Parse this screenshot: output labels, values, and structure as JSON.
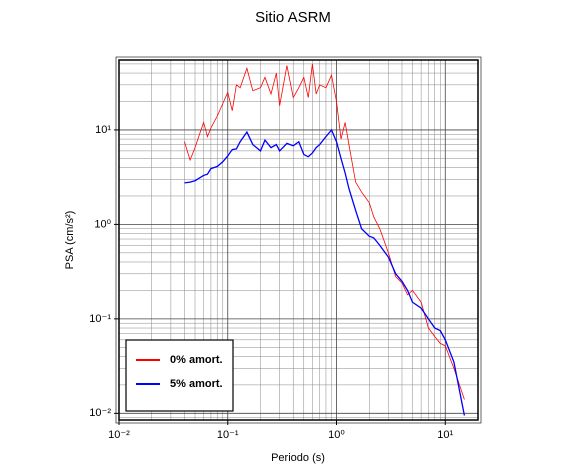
{
  "chart_data": {
    "type": "line",
    "title": "Sitio ASRM",
    "xlabel": "Periodo (s)",
    "ylabel": "PSA (cm/s²)",
    "xscale": "log",
    "yscale": "log",
    "grid": true,
    "legend": "lower left",
    "xlim": [
      0.01,
      20
    ],
    "ylim": [
      0.0085,
      55
    ],
    "xticks": [
      {
        "value": 0.01,
        "label": "10⁻²"
      },
      {
        "value": 0.1,
        "label": "10⁻¹"
      },
      {
        "value": 1,
        "label": "10⁰"
      },
      {
        "value": 10,
        "label": "10¹"
      }
    ],
    "yticks": [
      {
        "value": 0.01,
        "label": "10⁻²"
      },
      {
        "value": 0.1,
        "label": "10⁻¹"
      },
      {
        "value": 1,
        "label": "10⁰"
      },
      {
        "value": 10,
        "label": "10¹"
      }
    ],
    "x": [
      0.04,
      0.045,
      0.05,
      0.055,
      0.06,
      0.065,
      0.07,
      0.08,
      0.09,
      0.1,
      0.11,
      0.12,
      0.13,
      0.15,
      0.17,
      0.2,
      0.22,
      0.25,
      0.28,
      0.3,
      0.35,
      0.4,
      0.45,
      0.5,
      0.55,
      0.6,
      0.65,
      0.7,
      0.8,
      0.9,
      1.0,
      1.1,
      1.2,
      1.3,
      1.5,
      1.7,
      2.0,
      2.2,
      2.5,
      3.0,
      3.5,
      4.0,
      4.5,
      5.0,
      6.0,
      7.0,
      8.0,
      9.0,
      10,
      12,
      15
    ],
    "series": [
      {
        "name": "0% amort.",
        "color": "#ff0000",
        "values": [
          7.5,
          4.8,
          6.5,
          9,
          12,
          8.5,
          10.5,
          14,
          19,
          25,
          16,
          30,
          28,
          45,
          26,
          28,
          36,
          24,
          40,
          18,
          48,
          22,
          28,
          36,
          22,
          50,
          24,
          30,
          28,
          38,
          20,
          8,
          12,
          7,
          2.8,
          2.2,
          1.7,
          1.2,
          0.9,
          0.5,
          0.28,
          0.24,
          0.18,
          0.2,
          0.15,
          0.08,
          0.065,
          0.055,
          0.052,
          0.03,
          0.014
        ]
      },
      {
        "name": "5% amort.",
        "color": "#0000ff",
        "values": [
          2.75,
          2.8,
          2.9,
          3.1,
          3.3,
          3.4,
          3.9,
          4.1,
          4.6,
          5.3,
          6.2,
          6.3,
          7.5,
          9.5,
          7.0,
          6.0,
          7.8,
          6.5,
          7.0,
          6.0,
          7.2,
          6.8,
          7.5,
          5.5,
          5.2,
          5.7,
          6.5,
          7.0,
          8.5,
          10,
          7.5,
          5.0,
          3.5,
          2.4,
          1.4,
          0.9,
          0.75,
          0.72,
          0.6,
          0.45,
          0.3,
          0.25,
          0.2,
          0.15,
          0.13,
          0.1,
          0.08,
          0.075,
          0.06,
          0.035,
          0.0095
        ]
      }
    ]
  }
}
